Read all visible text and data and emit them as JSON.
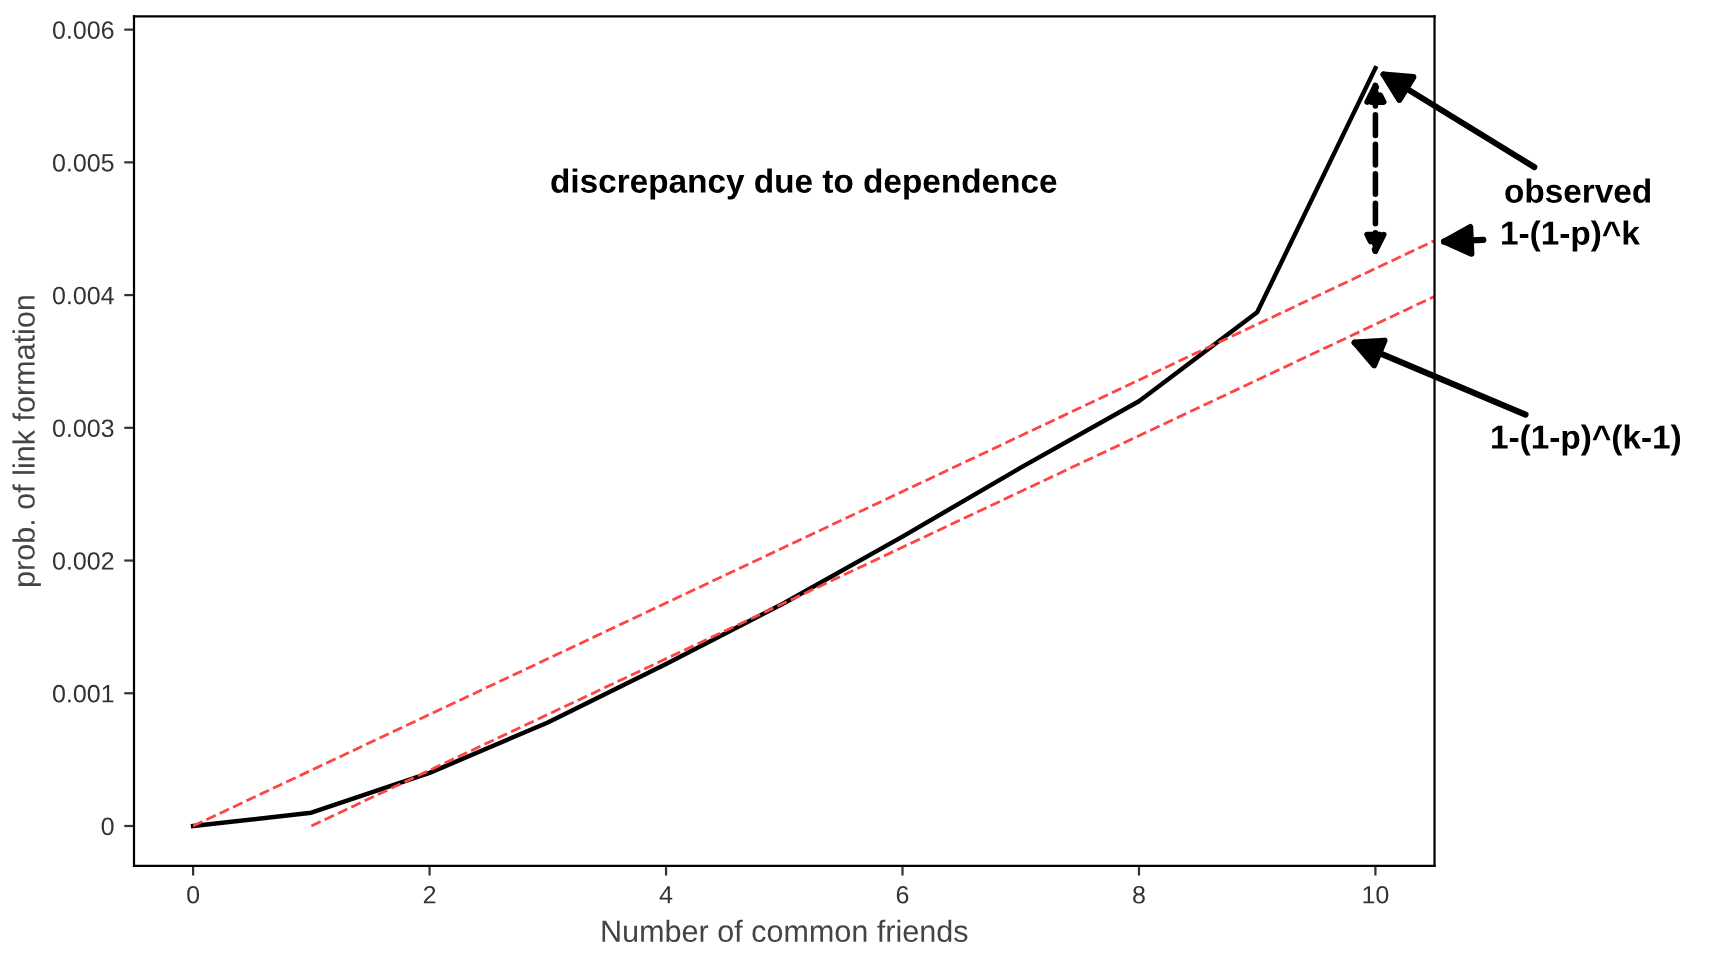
{
  "chart_data": {
    "type": "line",
    "xlabel": "Number of common friends",
    "ylabel": "prob. of link formation",
    "xlim": [
      -0.5,
      10.5
    ],
    "ylim": [
      -0.0003,
      0.0061
    ],
    "xticks": [
      0,
      2,
      4,
      6,
      8,
      10
    ],
    "yticks": [
      0,
      0.001,
      0.002,
      0.003,
      0.004,
      0.005,
      0.006
    ],
    "grid": false,
    "series": [
      {
        "color": "#000000",
        "x": [
          0,
          1,
          2,
          3,
          4,
          5,
          6,
          7,
          8,
          9,
          10
        ],
        "values": [
          0,
          0.0001,
          0.0004,
          0.00078,
          0.00122,
          0.00168,
          0.00218,
          0.0027,
          0.0032,
          0.00387,
          0.00571
        ],
        "line_style": "solid"
      },
      {
        "color": "#ff4444",
        "x": [
          0,
          10.5
        ],
        "values": [
          0,
          0.00441
        ],
        "line_style": "dashed"
      },
      {
        "color": "#ff4444",
        "x": [
          1,
          10.5
        ],
        "values": [
          0,
          0.00399
        ],
        "line_style": "dashed"
      }
    ],
    "annotations": [
      {
        "text": "observed",
        "x": 10,
        "y": 0.0057
      },
      "discrepancy due to dependence",
      {
        "text": "1-(1-p)^k",
        "x": 10.5,
        "y": 0.0044
      },
      {
        "text": "1-(1-p)^(k-1)",
        "x": 9.75,
        "y": 0.00367
      }
    ]
  }
}
